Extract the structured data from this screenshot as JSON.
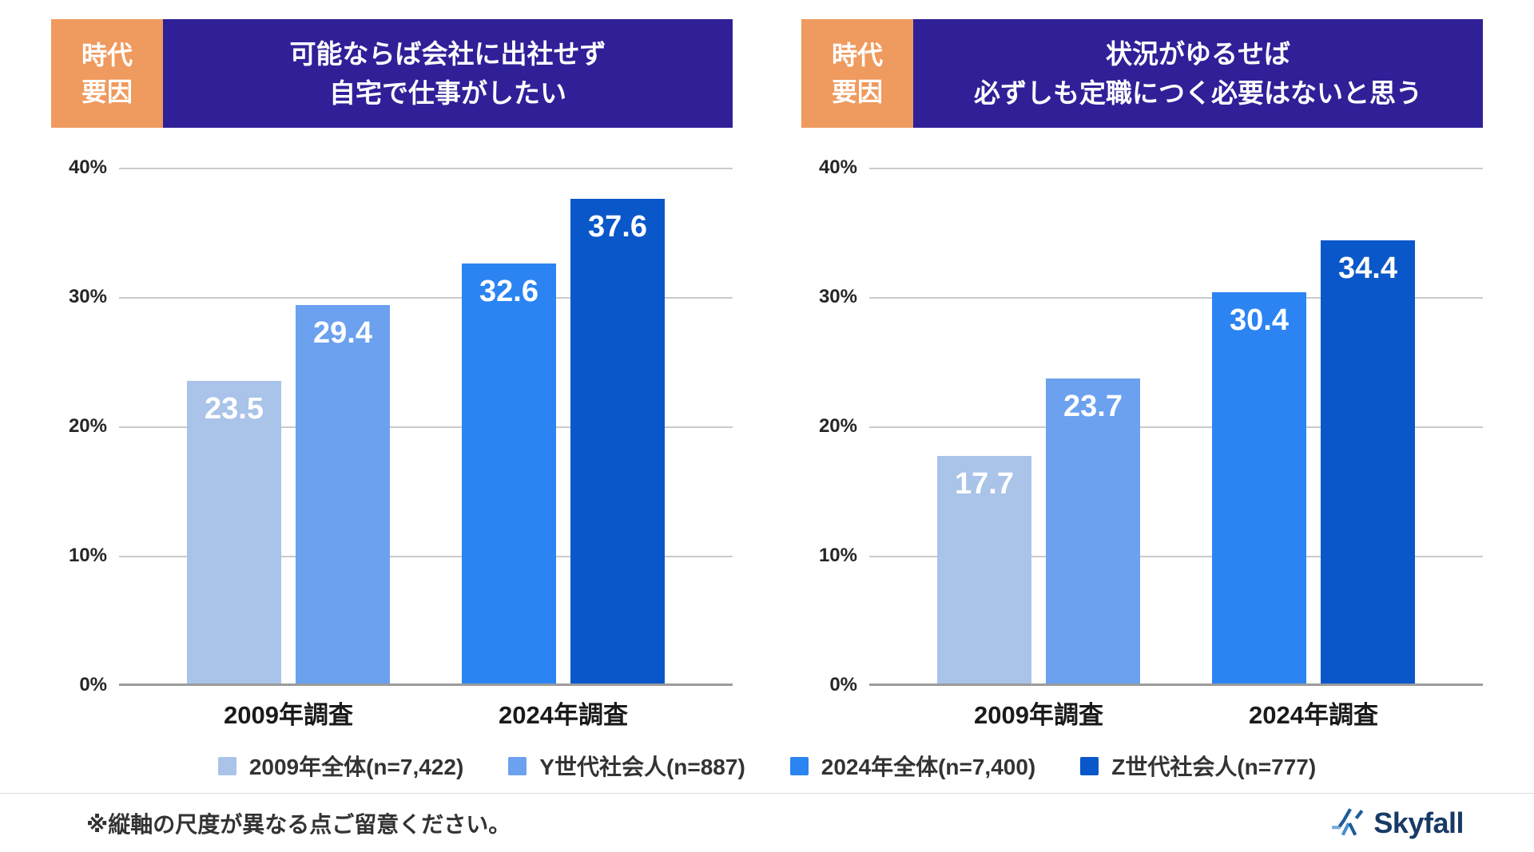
{
  "axis": {
    "ticks": [
      "40%",
      "30%",
      "20%",
      "10%",
      "0%"
    ],
    "max": 40
  },
  "charts": [
    {
      "badge_lines": [
        "時代",
        "要因"
      ],
      "title_lines": [
        "可能ならば会社に出社せず",
        "自宅で仕事がしたい"
      ],
      "groups": [
        {
          "label": "2009年調査",
          "bars": [
            {
              "series": "2009年全体(n=7,422)",
              "value": 23.5,
              "label": "23.5",
              "color": "#a9c3e9"
            },
            {
              "series": "Y世代社会人(n=887)",
              "value": 29.4,
              "label": "29.4",
              "color": "#6ba1ef"
            }
          ]
        },
        {
          "label": "2024年調査",
          "bars": [
            {
              "series": "2024年全体(n=7,400)",
              "value": 32.6,
              "label": "32.6",
              "color": "#2b84f2"
            },
            {
              "series": "Z世代社会人(n=777)",
              "value": 37.6,
              "label": "37.6",
              "color": "#0a57c9"
            }
          ]
        }
      ]
    },
    {
      "badge_lines": [
        "時代",
        "要因"
      ],
      "title_lines": [
        "状況がゆるせば",
        "必ずしも定職につく必要はないと思う"
      ],
      "groups": [
        {
          "label": "2009年調査",
          "bars": [
            {
              "series": "2009年全体(n=7,422)",
              "value": 17.7,
              "label": "17.7",
              "color": "#a9c3e9"
            },
            {
              "series": "Y世代社会人(n=887)",
              "value": 23.7,
              "label": "23.7",
              "color": "#6ba1ef"
            }
          ]
        },
        {
          "label": "2024年調査",
          "bars": [
            {
              "series": "2024年全体(n=7,400)",
              "value": 30.4,
              "label": "30.4",
              "color": "#2b84f2"
            },
            {
              "series": "Z世代社会人(n=777)",
              "value": 34.4,
              "label": "34.4",
              "color": "#0a57c9"
            }
          ]
        }
      ]
    }
  ],
  "legend": {
    "items": [
      {
        "label": "2009年全体(n=7,422)",
        "color": "#a9c3e9"
      },
      {
        "label": "Y世代社会人(n=887)",
        "color": "#6ba1ef"
      },
      {
        "label": "2024年全体(n=7,400)",
        "color": "#2b84f2"
      },
      {
        "label": "Z世代社会人(n=777)",
        "color": "#0a57c9"
      }
    ]
  },
  "footer": {
    "note": "※縦軸の尺度が異なる点ご留意ください。",
    "logo_text": "Skyfall"
  },
  "colors": {
    "banner_bg": "#2f2098",
    "badge_bg": "#ef9a5e",
    "gridline": "#cacaca",
    "zero_line": "#9b9b9b",
    "logo_navy": "#173a66",
    "logo_light_blue": "#77aed9"
  },
  "chart_data": [
    {
      "type": "bar",
      "title": "可能ならば会社に出社せず自宅で仕事がしたい",
      "badge": "時代要因",
      "categories": [
        "2009年調査",
        "2024年調査"
      ],
      "series": [
        {
          "name": "2009年全体(n=7,422)",
          "category": "2009年調査",
          "value": 23.5
        },
        {
          "name": "Y世代社会人(n=887)",
          "category": "2009年調査",
          "value": 29.4
        },
        {
          "name": "2024年全体(n=7,400)",
          "category": "2024年調査",
          "value": 32.6
        },
        {
          "name": "Z世代社会人(n=777)",
          "category": "2024年調査",
          "value": 37.6
        }
      ],
      "ylabel": "%",
      "ylim": [
        0,
        40
      ],
      "yticks": [
        0,
        10,
        20,
        30,
        40
      ],
      "grid": true,
      "legend_position": "bottom"
    },
    {
      "type": "bar",
      "title": "状況がゆるせば必ずしも定職につく必要はないと思う",
      "badge": "時代要因",
      "categories": [
        "2009年調査",
        "2024年調査"
      ],
      "series": [
        {
          "name": "2009年全体(n=7,422)",
          "category": "2009年調査",
          "value": 17.7
        },
        {
          "name": "Y世代社会人(n=887)",
          "category": "2009年調査",
          "value": 23.7
        },
        {
          "name": "2024年全体(n=7,400)",
          "category": "2024年調査",
          "value": 30.4
        },
        {
          "name": "Z世代社会人(n=777)",
          "category": "2024年調査",
          "value": 34.4
        }
      ],
      "ylabel": "%",
      "ylim": [
        0,
        40
      ],
      "yticks": [
        0,
        10,
        20,
        30,
        40
      ],
      "grid": true,
      "legend_position": "bottom"
    }
  ]
}
